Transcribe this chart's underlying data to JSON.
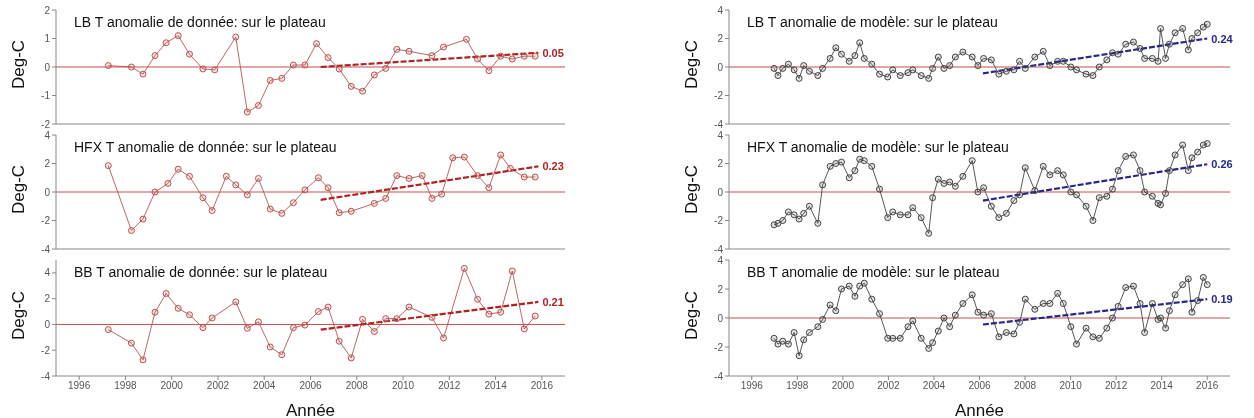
{
  "chart_data": [
    {
      "type": "line",
      "title": "LB T anomalie de donnée: sur le plateau",
      "ylabel": "Deg-C",
      "xlim": [
        1995,
        2017
      ],
      "xticks": [
        1996,
        1998,
        2000,
        2002,
        2004,
        2006,
        2008,
        2010,
        2012,
        2014,
        2016
      ],
      "ylim": [
        -2,
        2
      ],
      "yticks": [
        -2,
        -1,
        0,
        1,
        2
      ],
      "tick_labels": "y",
      "grid": false,
      "legend": false,
      "ref_lines": [
        {
          "axis": "y",
          "value": 0,
          "color": "#c0504d"
        }
      ],
      "annotations": [
        "0.05"
      ],
      "series": [
        {
          "color": "#b85450",
          "marker": "circle",
          "line_style": "solid",
          "x": [
            1997.26,
            1998.26,
            1998.76,
            1999.28,
            1999.76,
            2000.28,
            2000.77,
            2001.35,
            2001.86,
            2002.77,
            2003.27,
            2003.75,
            2004.26,
            2004.76,
            2005.26,
            2005.76,
            2006.26,
            2006.76,
            2007.24,
            2007.76,
            2008.25,
            2008.76,
            2009.25,
            2009.73,
            2010.26,
            2011.25,
            2011.75,
            2012.74,
            2013.22,
            2013.71,
            2014.22,
            2014.72,
            2015.24,
            2015.71
          ],
          "values": [
            0.05,
            0.0,
            -0.25,
            0.4,
            0.85,
            1.1,
            0.45,
            -0.07,
            -0.1,
            1.05,
            -1.58,
            -1.35,
            -0.47,
            -0.4,
            0.07,
            0.07,
            0.82,
            0.33,
            -0.07,
            -0.68,
            -0.85,
            -0.28,
            -0.05,
            0.62,
            0.55,
            0.4,
            0.7,
            0.97,
            0.28,
            -0.13,
            0.38,
            0.28,
            0.38,
            0.38
          ]
        },
        {
          "color": "#b22222",
          "marker": "none",
          "line_style": "dashed",
          "x": [
            2006.44,
            2015.85
          ],
          "values": [
            0.0,
            0.5
          ]
        }
      ]
    },
    {
      "type": "line",
      "title": "HFX T anomalie de donnée: sur le plateau",
      "ylabel": "Deg-C",
      "xlim": [
        1995,
        2017
      ],
      "xticks": [
        1996,
        1998,
        2000,
        2002,
        2004,
        2006,
        2008,
        2010,
        2012,
        2014,
        2016
      ],
      "ylim": [
        -4,
        4
      ],
      "yticks": [
        -4,
        -2,
        0,
        2,
        4
      ],
      "tick_labels": "y",
      "grid": false,
      "legend": false,
      "ref_lines": [
        {
          "axis": "y",
          "value": 0,
          "color": "#c0504d"
        }
      ],
      "annotations": [
        "0.23"
      ],
      "series": [
        {
          "color": "#b85450",
          "marker": "circle",
          "line_style": "solid",
          "x": [
            1997.26,
            1998.26,
            1998.76,
            1999.28,
            1999.84,
            2000.28,
            2000.77,
            2001.35,
            2001.75,
            2002.36,
            2002.77,
            2003.27,
            2003.75,
            2004.26,
            2004.76,
            2005.26,
            2005.76,
            2006.34,
            2006.76,
            2007.24,
            2007.76,
            2008.76,
            2009.25,
            2009.73,
            2010.26,
            2010.83,
            2011.25,
            2011.67,
            2012.15,
            2012.65,
            2013.22,
            2013.71,
            2014.22,
            2014.64,
            2015.24,
            2015.71
          ],
          "values": [
            1.85,
            -2.7,
            -1.9,
            0.0,
            0.6,
            1.6,
            1.1,
            -0.4,
            -1.3,
            1.1,
            0.5,
            -0.2,
            0.95,
            -1.2,
            -1.5,
            -0.75,
            0.15,
            1.0,
            0.3,
            -1.45,
            -1.35,
            -0.8,
            -0.45,
            1.15,
            0.95,
            1.15,
            -0.45,
            -0.15,
            2.4,
            2.45,
            1.15,
            0.3,
            2.6,
            1.65,
            1.05,
            1.05
          ]
        },
        {
          "color": "#b22222",
          "marker": "none",
          "line_style": "dashed",
          "x": [
            2006.44,
            2015.85
          ],
          "values": [
            -0.55,
            1.8
          ]
        }
      ]
    },
    {
      "type": "line",
      "title": "BB T anomalie de donnée: sur le plateau",
      "xlabel": "Année",
      "ylabel": "Deg-C",
      "xlim": [
        1995,
        2017
      ],
      "xticks": [
        1996,
        1998,
        2000,
        2002,
        2004,
        2006,
        2008,
        2010,
        2012,
        2014,
        2016
      ],
      "ylim": [
        -4,
        5
      ],
      "yticks": [
        -4,
        -2,
        0,
        2,
        4
      ],
      "grid": false,
      "legend": false,
      "ref_lines": [
        {
          "axis": "y",
          "value": 0,
          "color": "#c0504d"
        }
      ],
      "annotations": [
        "0.21"
      ],
      "series": [
        {
          "color": "#b85450",
          "marker": "circle",
          "line_style": "solid",
          "x": [
            1997.26,
            1998.26,
            1998.76,
            1999.28,
            1999.76,
            2000.28,
            2000.77,
            2001.35,
            2001.75,
            2002.77,
            2003.27,
            2003.75,
            2004.26,
            2004.76,
            2005.26,
            2005.76,
            2006.34,
            2006.76,
            2007.24,
            2007.76,
            2008.25,
            2008.76,
            2009.25,
            2009.73,
            2010.26,
            2011.25,
            2011.75,
            2012.65,
            2013.22,
            2013.71,
            2014.22,
            2014.72,
            2015.24,
            2015.71
          ],
          "values": [
            -0.4,
            -1.45,
            -2.75,
            0.95,
            2.4,
            1.25,
            0.75,
            -0.25,
            0.5,
            1.75,
            -0.3,
            0.2,
            -1.75,
            -2.35,
            -0.25,
            -0.05,
            1.0,
            1.35,
            -1.3,
            -2.6,
            0.4,
            -0.55,
            0.45,
            0.45,
            1.35,
            0.55,
            -1.05,
            4.35,
            1.95,
            0.8,
            0.95,
            4.15,
            -0.35,
            0.65
          ]
        },
        {
          "color": "#b22222",
          "marker": "none",
          "line_style": "dashed",
          "x": [
            2006.44,
            2015.85
          ],
          "values": [
            -0.4,
            1.75
          ]
        }
      ]
    },
    {
      "type": "line",
      "title": "LB T anomalie de modèle: sur le plateau",
      "ylabel": "Deg-C",
      "xlim": [
        1995,
        2017
      ],
      "xticks": [
        1996,
        1998,
        2000,
        2002,
        2004,
        2006,
        2008,
        2010,
        2012,
        2014,
        2016
      ],
      "ylim": [
        -4,
        4
      ],
      "yticks": [
        -4,
        -2,
        0,
        2,
        4
      ],
      "tick_labels": "y",
      "grid": false,
      "legend": false,
      "ref_lines": [
        {
          "axis": "y",
          "value": 0,
          "color": "#c0504d"
        }
      ],
      "annotations": [
        "0.24"
      ],
      "series": [
        {
          "color": "#444444",
          "marker": "circle",
          "line_style": "solid",
          "x": [
            1996.98,
            1997.15,
            1997.36,
            1997.61,
            1997.86,
            1998.08,
            1998.28,
            1998.53,
            1998.9,
            1999.11,
            1999.44,
            1999.69,
            1999.94,
            2000.28,
            2000.53,
            2000.74,
            2000.94,
            2001.27,
            2001.61,
            2001.97,
            2002.19,
            2002.52,
            2002.86,
            2003.07,
            2003.44,
            2003.77,
            2003.94,
            2004.19,
            2004.44,
            2004.69,
            2004.94,
            2005.27,
            2005.68,
            2005.93,
            2006.18,
            2006.52,
            2006.85,
            2007.18,
            2007.51,
            2007.76,
            2008.01,
            2008.43,
            2008.8,
            2009.09,
            2009.43,
            2009.68,
            2010.01,
            2010.26,
            2010.68,
            2010.98,
            2011.26,
            2011.59,
            2011.84,
            2012.09,
            2012.42,
            2012.76,
            2013.05,
            2013.25,
            2013.59,
            2013.84,
            2013.95,
            2014.17,
            2014.34,
            2014.59,
            2014.92,
            2015.17,
            2015.33,
            2015.58,
            2015.83,
            2016.0
          ],
          "values": [
            -0.1,
            -0.6,
            -0.1,
            0.2,
            -0.2,
            -0.8,
            0.1,
            -0.3,
            -0.6,
            -0.1,
            0.6,
            1.35,
            0.9,
            0.4,
            0.8,
            1.7,
            0.6,
            0.2,
            -0.5,
            -0.7,
            -0.2,
            -0.6,
            -0.4,
            -0.2,
            -0.6,
            -0.8,
            -0.1,
            0.7,
            -0.1,
            0.1,
            0.7,
            1.05,
            0.7,
            0.1,
            0.6,
            0.5,
            -0.5,
            -0.3,
            -0.2,
            0.4,
            -0.1,
            0.7,
            1.1,
            0.1,
            0.4,
            0.4,
            0.0,
            -0.2,
            -0.5,
            -0.6,
            0.0,
            0.5,
            1.0,
            0.9,
            1.6,
            1.75,
            1.3,
            0.6,
            0.6,
            0.4,
            2.7,
            0.6,
            1.6,
            2.4,
            2.7,
            1.2,
            2.0,
            2.4,
            2.8,
            3.0
          ]
        },
        {
          "color": "#27278f",
          "marker": "none",
          "line_style": "dashed",
          "x": [
            2006.15,
            2016.0
          ],
          "values": [
            -0.45,
            2.0
          ]
        }
      ]
    },
    {
      "type": "line",
      "title": "HFX T anomalie de modèle: sur le plateau",
      "ylabel": "Deg-C",
      "xlim": [
        1995,
        2017
      ],
      "xticks": [
        1996,
        1998,
        2000,
        2002,
        2004,
        2006,
        2008,
        2010,
        2012,
        2014,
        2016
      ],
      "ylim": [
        -4,
        4
      ],
      "yticks": [
        -4,
        -2,
        0,
        2,
        4
      ],
      "tick_labels": "y",
      "grid": false,
      "legend": false,
      "ref_lines": [
        {
          "axis": "y",
          "value": 0,
          "color": "#c0504d"
        }
      ],
      "annotations": [
        "0.26"
      ],
      "series": [
        {
          "color": "#444444",
          "marker": "circle",
          "line_style": "solid",
          "x": [
            1996.98,
            1997.15,
            1997.36,
            1997.61,
            1997.86,
            1998.08,
            1998.28,
            1998.53,
            1998.9,
            1999.11,
            1999.44,
            1999.69,
            1999.94,
            2000.28,
            2000.53,
            2000.74,
            2000.94,
            2001.27,
            2001.61,
            2001.97,
            2002.19,
            2002.52,
            2002.86,
            2003.07,
            2003.44,
            2003.77,
            2003.94,
            2004.19,
            2004.44,
            2004.69,
            2004.94,
            2005.27,
            2005.68,
            2005.93,
            2006.18,
            2006.52,
            2006.85,
            2007.18,
            2007.51,
            2007.76,
            2008.01,
            2008.43,
            2008.8,
            2009.09,
            2009.43,
            2009.68,
            2010.01,
            2010.26,
            2010.68,
            2010.98,
            2011.26,
            2011.59,
            2011.84,
            2012.09,
            2012.42,
            2012.76,
            2013.05,
            2013.25,
            2013.59,
            2013.84,
            2013.95,
            2014.17,
            2014.34,
            2014.59,
            2014.92,
            2015.17,
            2015.33,
            2015.58,
            2015.83,
            2016.0
          ],
          "values": [
            -2.3,
            -2.2,
            -2.0,
            -1.4,
            -1.6,
            -1.9,
            -1.5,
            -1.0,
            -2.2,
            0.5,
            1.8,
            2.0,
            2.1,
            1.0,
            1.5,
            2.3,
            2.2,
            1.8,
            0.2,
            -1.8,
            -1.4,
            -1.6,
            -1.6,
            -1.1,
            -1.8,
            -2.9,
            -0.4,
            0.9,
            0.6,
            0.7,
            0.4,
            1.1,
            2.2,
            0.0,
            0.3,
            -1.0,
            -1.8,
            -1.5,
            -0.6,
            -0.2,
            1.7,
            0.1,
            1.8,
            1.2,
            1.5,
            1.2,
            0.0,
            -0.2,
            -1.0,
            -2.0,
            -0.4,
            -0.3,
            0.2,
            1.5,
            2.5,
            2.6,
            1.5,
            0.0,
            -0.3,
            -0.8,
            -0.9,
            -0.1,
            1.5,
            2.6,
            3.3,
            1.5,
            2.4,
            2.8,
            3.3,
            3.4
          ]
        },
        {
          "color": "#27278f",
          "marker": "none",
          "line_style": "dashed",
          "x": [
            2006.15,
            2016.0
          ],
          "values": [
            -0.6,
            1.95
          ]
        }
      ]
    },
    {
      "type": "line",
      "title": "BB T anomalie de modèle: sur le plateau",
      "xlabel": "Année",
      "ylabel": "Deg-C",
      "xlim": [
        1995,
        2017
      ],
      "xticks": [
        1996,
        1998,
        2000,
        2002,
        2004,
        2006,
        2008,
        2010,
        2012,
        2014,
        2016
      ],
      "ylim": [
        -4,
        4
      ],
      "yticks": [
        -4,
        -2,
        0,
        2,
        4
      ],
      "grid": false,
      "legend": false,
      "ref_lines": [
        {
          "axis": "y",
          "value": 0,
          "color": "#c0504d"
        }
      ],
      "annotations": [
        "0.19"
      ],
      "series": [
        {
          "color": "#444444",
          "marker": "circle",
          "line_style": "solid",
          "x": [
            1996.98,
            1997.15,
            1997.36,
            1997.61,
            1997.86,
            1998.08,
            1998.28,
            1998.53,
            1998.9,
            1999.11,
            1999.44,
            1999.69,
            1999.94,
            2000.28,
            2000.53,
            2000.74,
            2000.94,
            2001.27,
            2001.61,
            2001.97,
            2002.19,
            2002.52,
            2002.86,
            2003.07,
            2003.44,
            2003.77,
            2003.94,
            2004.19,
            2004.44,
            2004.69,
            2004.94,
            2005.27,
            2005.68,
            2005.93,
            2006.18,
            2006.52,
            2006.85,
            2007.18,
            2007.51,
            2007.76,
            2008.01,
            2008.43,
            2008.8,
            2009.09,
            2009.43,
            2009.68,
            2010.01,
            2010.26,
            2010.68,
            2010.98,
            2011.26,
            2011.59,
            2011.84,
            2012.09,
            2012.42,
            2012.76,
            2013.05,
            2013.25,
            2013.59,
            2013.84,
            2013.95,
            2014.17,
            2014.34,
            2014.59,
            2014.92,
            2015.17,
            2015.33,
            2015.58,
            2015.83,
            2016.0
          ],
          "values": [
            -1.4,
            -1.8,
            -1.6,
            -1.8,
            -1.0,
            -2.6,
            -1.5,
            -1.0,
            -0.6,
            -0.1,
            0.9,
            0.5,
            2.0,
            2.2,
            1.5,
            2.2,
            2.4,
            1.3,
            0.3,
            -1.4,
            -1.4,
            -1.4,
            -0.6,
            -0.2,
            -1.4,
            -2.1,
            -1.7,
            -0.9,
            0.0,
            -0.6,
            0.2,
            1.0,
            1.6,
            0.4,
            0.2,
            0.3,
            -1.3,
            -1.0,
            -1.1,
            -0.3,
            1.3,
            0.6,
            1.0,
            1.0,
            1.7,
            1.0,
            -0.6,
            -1.8,
            -0.7,
            -1.3,
            -1.4,
            -0.7,
            0.0,
            0.8,
            2.1,
            2.2,
            1.0,
            -1.0,
            1.0,
            -0.1,
            0.0,
            -0.7,
            0.5,
            1.6,
            2.3,
            2.7,
            0.4,
            1.2,
            2.8,
            2.3
          ]
        },
        {
          "color": "#27278f",
          "marker": "none",
          "line_style": "dashed",
          "x": [
            2006.15,
            2016.0
          ],
          "values": [
            -0.45,
            1.3
          ]
        }
      ]
    }
  ]
}
